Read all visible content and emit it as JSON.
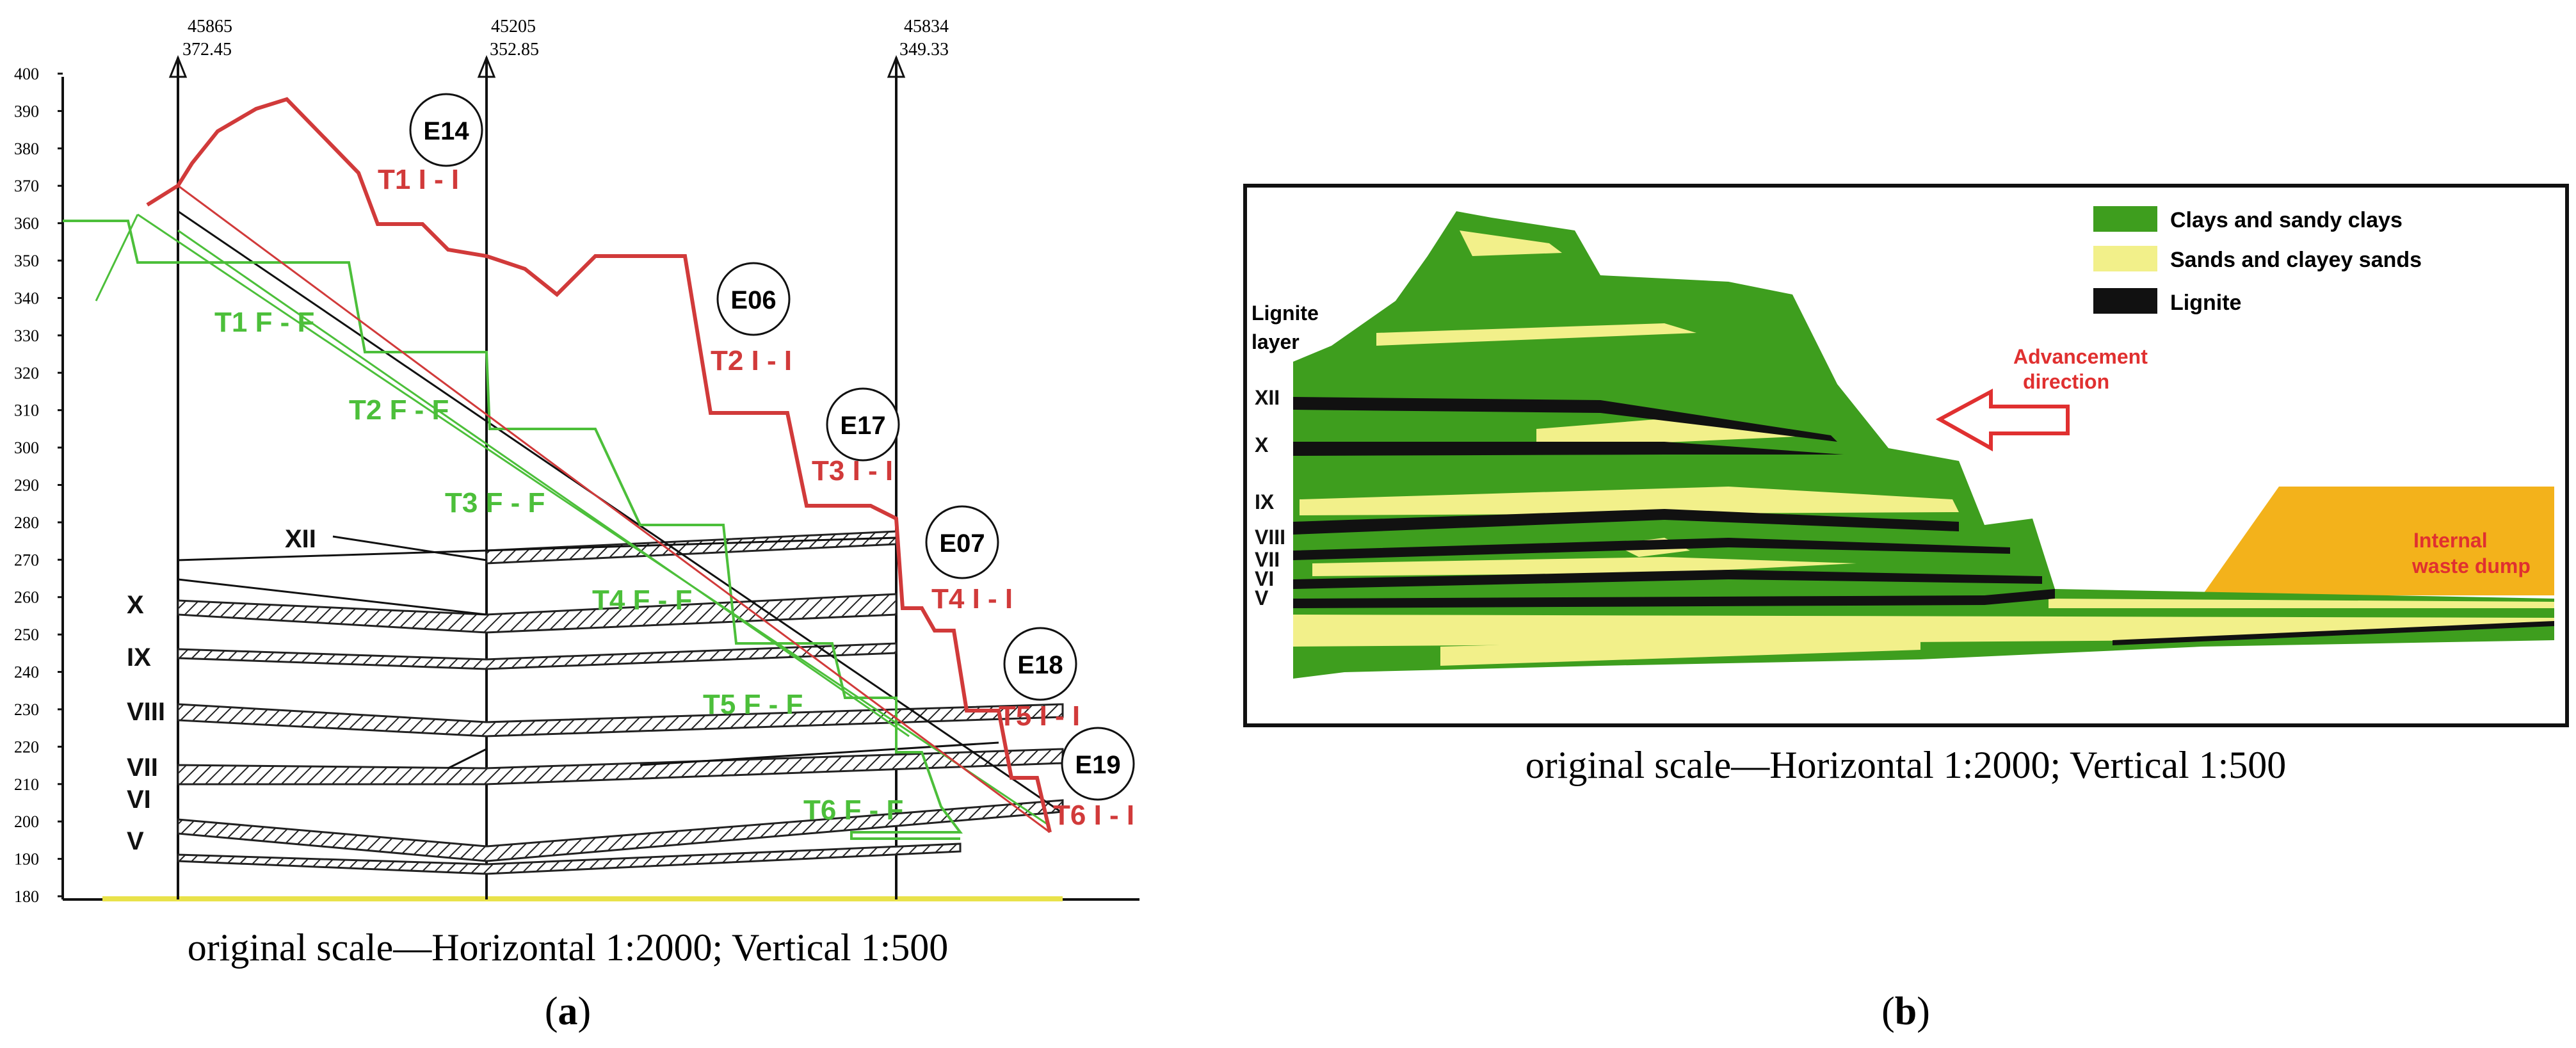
{
  "panel_a": {
    "top_labels": [
      {
        "top": "45865",
        "bottom": "372.45"
      },
      {
        "top": "45205",
        "bottom": "352.85"
      },
      {
        "top": "45834",
        "bottom": "349.33"
      }
    ],
    "y_ticks": [
      "400",
      "390",
      "380",
      "370",
      "360",
      "350",
      "340",
      "330",
      "320",
      "310",
      "300",
      "290",
      "280",
      "270",
      "260",
      "250",
      "240",
      "230",
      "220",
      "210",
      "200",
      "190",
      "180"
    ],
    "points": [
      "E14",
      "E06",
      "E17",
      "E07",
      "E18",
      "E19"
    ],
    "red_labels": [
      "T1 I - I",
      "T2 I - I",
      "T3 I - I",
      "T4 I - I",
      "T5 I - I",
      "T6 I - I"
    ],
    "green_labels": [
      "T1 F - F",
      "T2 F - F",
      "T3 F - F",
      "T4 F - F",
      "T5 F - F",
      "T6 F - F"
    ],
    "layers": [
      "XII",
      "X",
      "IX",
      "VIII",
      "VII",
      "VI",
      "V"
    ],
    "scale_caption": "original scale—Horizontal 1:2000; Vertical 1:500",
    "panel_letter": "a"
  },
  "panel_b": {
    "legend": [
      "Clays and sandy clays",
      "Sands and clayey sands",
      "Lignite"
    ],
    "lignite_layer_label": [
      "Lignite",
      "layer"
    ],
    "layers": [
      "XII",
      "X",
      "IX",
      "VIII",
      "VII",
      "VI",
      "V"
    ],
    "advancement_label": [
      "Advancement",
      "direction"
    ],
    "dump_label": [
      "Internal",
      "waste dump"
    ],
    "scale_caption": "original scale—Horizontal 1:2000; Vertical 1:500",
    "panel_letter": "b"
  },
  "colors": {
    "red": "#d13a3a",
    "green": "#4cbf3a",
    "clay_green": "#3e9e1e",
    "sand_yellow": "#f2f08a",
    "dump_orange": "#f3b21b",
    "arrow_red": "#e03030"
  }
}
